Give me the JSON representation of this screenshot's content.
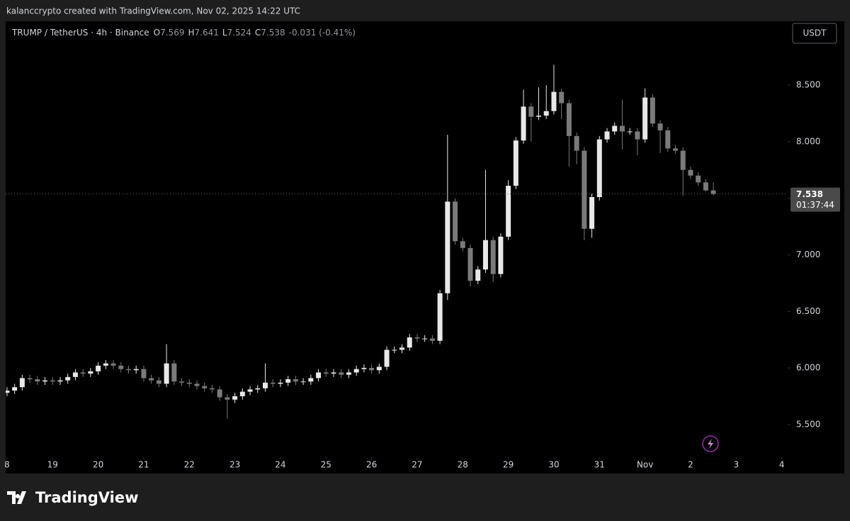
{
  "chart_data": {
    "type": "candlestick",
    "watermark": "kalanccrypto created with TradingView.com, Nov 02, 2025 14:22 UTC",
    "title": "TRUMP / TetherUS · 4h · Binance",
    "ohlc_letters": [
      "O",
      "H",
      "L",
      "C"
    ],
    "change": "-0.031 (-0.41%)",
    "currency": "USDT",
    "countdown": "01:37:44",
    "brand": "TradingView",
    "up_color": "#e8e8e8",
    "down_color": "#7a7a7a",
    "x": [
      18,
      18.1667,
      18.3333,
      18.5,
      18.6667,
      18.8333,
      19,
      19.1667,
      19.3333,
      19.5,
      19.6667,
      19.8333,
      20,
      20.1667,
      20.3333,
      20.5,
      20.6667,
      20.8333,
      21,
      21.1667,
      21.3333,
      21.5,
      21.6667,
      21.8333,
      22,
      22.1667,
      22.3333,
      22.5,
      22.6667,
      22.8333,
      23,
      23.1667,
      23.3333,
      23.5,
      23.6667,
      23.8333,
      24,
      24.1667,
      24.3333,
      24.5,
      24.6667,
      24.8333,
      25,
      25.1667,
      25.3333,
      25.5,
      25.6667,
      25.8333,
      26,
      26.1667,
      26.3333,
      26.5,
      26.6667,
      26.8333,
      27,
      27.1667,
      27.3333,
      27.5,
      27.6667,
      27.8333,
      28,
      28.1667,
      28.3333,
      28.5,
      28.6667,
      28.8333,
      29,
      29.1667,
      29.3333,
      29.5,
      29.6667,
      29.8333,
      30,
      30.1667,
      30.3333,
      30.5,
      30.6667,
      30.8333,
      31,
      31.1667,
      31.3333,
      31.5,
      31.6667,
      31.8333,
      32,
      32.1667,
      32.3333,
      32.5,
      32.6667,
      32.8333,
      33,
      33.1667,
      33.3333,
      33.5
    ],
    "open": [
      5.78,
      5.8,
      5.83,
      5.91,
      5.9,
      5.88,
      5.89,
      5.88,
      5.89,
      5.92,
      5.96,
      5.95,
      5.97,
      6.02,
      6.04,
      6.02,
      5.99,
      5.98,
      5.99,
      5.91,
      5.89,
      5.86,
      6.04,
      5.88,
      5.87,
      5.86,
      5.84,
      5.82,
      5.81,
      5.74,
      5.72,
      5.75,
      5.79,
      5.81,
      5.82,
      5.87,
      5.86,
      5.87,
      5.9,
      5.88,
      5.88,
      5.91,
      5.96,
      5.95,
      5.96,
      5.94,
      5.96,
      5.99,
      6.0,
      5.98,
      6.01,
      6.16,
      6.16,
      6.18,
      6.27,
      6.26,
      6.26,
      6.24,
      6.66,
      7.47,
      7.12,
      7.06,
      6.77,
      6.87,
      7.13,
      6.83,
      7.16,
      7.61,
      8.01,
      8.31,
      8.22,
      8.23,
      8.27,
      8.44,
      8.34,
      8.05,
      7.92,
      7.23,
      7.51,
      8.02,
      8.09,
      8.14,
      8.09,
      8.09,
      8.02,
      8.39,
      8.16,
      8.1,
      7.94,
      7.92,
      7.75,
      7.7,
      7.64,
      7.569
    ],
    "high": [
      5.83,
      5.86,
      5.94,
      5.94,
      5.93,
      5.92,
      5.92,
      5.92,
      5.95,
      5.99,
      5.99,
      6.0,
      6.05,
      6.07,
      6.07,
      6.05,
      6.02,
      6.02,
      6.02,
      5.94,
      5.92,
      6.21,
      6.07,
      5.91,
      5.9,
      5.89,
      5.87,
      5.85,
      5.84,
      5.77,
      5.78,
      5.82,
      5.84,
      5.85,
      6.04,
      5.9,
      5.9,
      5.93,
      5.93,
      5.91,
      5.94,
      5.99,
      5.99,
      5.99,
      5.99,
      5.99,
      6.02,
      6.03,
      6.03,
      6.04,
      6.19,
      6.19,
      6.21,
      6.3,
      6.3,
      6.29,
      6.29,
      6.69,
      8.06,
      7.5,
      7.15,
      7.09,
      6.9,
      7.75,
      7.16,
      7.19,
      7.66,
      8.04,
      8.46,
      8.34,
      8.48,
      8.5,
      8.68,
      8.47,
      8.37,
      8.08,
      7.95,
      7.54,
      8.05,
      8.12,
      8.17,
      8.37,
      8.12,
      8.12,
      8.47,
      8.42,
      8.19,
      8.13,
      7.97,
      7.95,
      7.78,
      7.73,
      7.67,
      7.641
    ],
    "low": [
      5.75,
      5.77,
      5.8,
      5.87,
      5.85,
      5.85,
      5.85,
      5.85,
      5.86,
      5.89,
      5.92,
      5.92,
      5.94,
      5.99,
      5.99,
      5.96,
      5.95,
      5.95,
      5.88,
      5.86,
      5.83,
      5.83,
      5.85,
      5.84,
      5.83,
      5.81,
      5.79,
      5.78,
      5.71,
      5.55,
      5.69,
      5.72,
      5.76,
      5.78,
      5.79,
      5.83,
      5.83,
      5.84,
      5.85,
      5.85,
      5.85,
      5.88,
      5.92,
      5.92,
      5.91,
      5.91,
      5.93,
      5.96,
      5.95,
      5.95,
      5.98,
      6.13,
      6.13,
      6.15,
      6.23,
      6.23,
      6.21,
      6.21,
      6.6,
      7.09,
      7.03,
      6.72,
      6.74,
      6.84,
      6.76,
      6.8,
      7.13,
      7.58,
      7.98,
      8.0,
      8.19,
      8.2,
      8.24,
      8.2,
      7.78,
      7.8,
      7.13,
      7.15,
      7.48,
      7.99,
      8.06,
      7.93,
      8.06,
      7.88,
      7.99,
      8.13,
      7.9,
      7.91,
      7.89,
      7.52,
      7.67,
      7.61,
      7.56,
      7.524
    ],
    "close": [
      5.8,
      5.83,
      5.91,
      5.9,
      5.88,
      5.89,
      5.88,
      5.89,
      5.92,
      5.96,
      5.95,
      5.97,
      6.02,
      6.04,
      6.02,
      5.99,
      5.98,
      5.99,
      5.91,
      5.89,
      5.86,
      6.04,
      5.88,
      5.87,
      5.86,
      5.84,
      5.82,
      5.81,
      5.74,
      5.72,
      5.75,
      5.79,
      5.81,
      5.82,
      5.87,
      5.86,
      5.87,
      5.9,
      5.88,
      5.88,
      5.91,
      5.96,
      5.95,
      5.96,
      5.94,
      5.96,
      5.99,
      6.0,
      5.98,
      6.01,
      6.16,
      6.16,
      6.18,
      6.27,
      6.26,
      6.26,
      6.24,
      6.66,
      7.47,
      7.12,
      7.06,
      6.77,
      6.87,
      7.13,
      6.83,
      7.16,
      7.61,
      8.01,
      8.31,
      8.22,
      8.23,
      8.27,
      8.44,
      8.34,
      8.05,
      7.92,
      7.23,
      7.51,
      8.02,
      8.09,
      8.14,
      8.09,
      8.09,
      8.02,
      8.39,
      8.16,
      8.1,
      7.94,
      7.92,
      7.75,
      7.7,
      7.64,
      7.569,
      7.538
    ],
    "xlim": [
      17.97,
      35.13
    ],
    "xticks": [
      {
        "value": 18,
        "label": "8"
      },
      19,
      20,
      21,
      22,
      23,
      24,
      25,
      26,
      27,
      28,
      29,
      30,
      31,
      {
        "value": 32,
        "label": "Nov"
      },
      {
        "value": 33,
        "label": "2"
      },
      {
        "value": 34,
        "label": "3"
      },
      {
        "value": 35,
        "label": "4"
      }
    ],
    "ylim": [
      5.211,
      9.064
    ],
    "yticks": [
      {
        "value": 5.5,
        "label": "5.500"
      },
      {
        "value": 6,
        "label": "6.000"
      },
      {
        "value": 6.5,
        "label": "6.500"
      },
      {
        "value": 7,
        "label": "7.000"
      },
      {
        "value": 7.5,
        "label": "7.500"
      },
      {
        "value": 8,
        "label": "8.000"
      },
      {
        "value": 8.5,
        "label": "8.500"
      }
    ],
    "grid": false
  }
}
